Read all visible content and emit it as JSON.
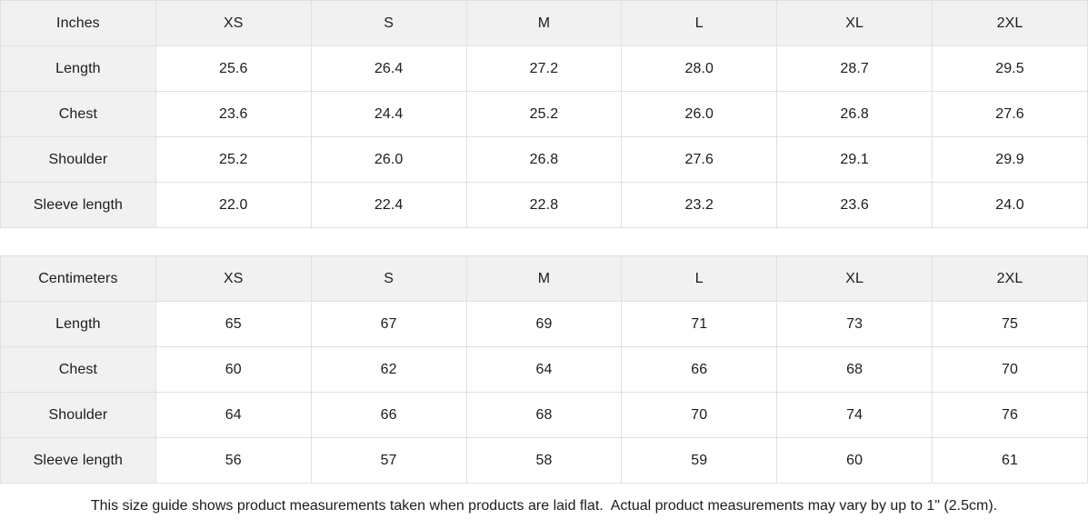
{
  "chart_data": [
    {
      "type": "table",
      "title": "Inches",
      "columns": [
        "Inches",
        "XS",
        "S",
        "M",
        "L",
        "XL",
        "2XL"
      ],
      "rows": [
        [
          "Length",
          "25.6",
          "26.4",
          "27.2",
          "28.0",
          "28.7",
          "29.5"
        ],
        [
          "Chest",
          "23.6",
          "24.4",
          "25.2",
          "26.0",
          "26.8",
          "27.6"
        ],
        [
          "Shoulder",
          "25.2",
          "26.0",
          "26.8",
          "27.6",
          "29.1",
          "29.9"
        ],
        [
          "Sleeve length",
          "22.0",
          "22.4",
          "22.8",
          "23.2",
          "23.6",
          "24.0"
        ]
      ]
    },
    {
      "type": "table",
      "title": "Centimeters",
      "columns": [
        "Centimeters",
        "XS",
        "S",
        "M",
        "L",
        "XL",
        "2XL"
      ],
      "rows": [
        [
          "Length",
          "65",
          "67",
          "69",
          "71",
          "73",
          "75"
        ],
        [
          "Chest",
          "60",
          "62",
          "64",
          "66",
          "68",
          "70"
        ],
        [
          "Shoulder",
          "64",
          "66",
          "68",
          "70",
          "74",
          "76"
        ],
        [
          "Sleeve length",
          "56",
          "57",
          "58",
          "59",
          "60",
          "61"
        ]
      ]
    }
  ],
  "footer": {
    "note": "This size guide shows product measurements taken when products are laid flat.  Actual product measurements may vary by up to 1\" (2.5cm)."
  },
  "colors": {
    "header_bg": "#f1f1f1",
    "border_color": "#e0e0e0",
    "text_color": "#1c1c1c"
  }
}
